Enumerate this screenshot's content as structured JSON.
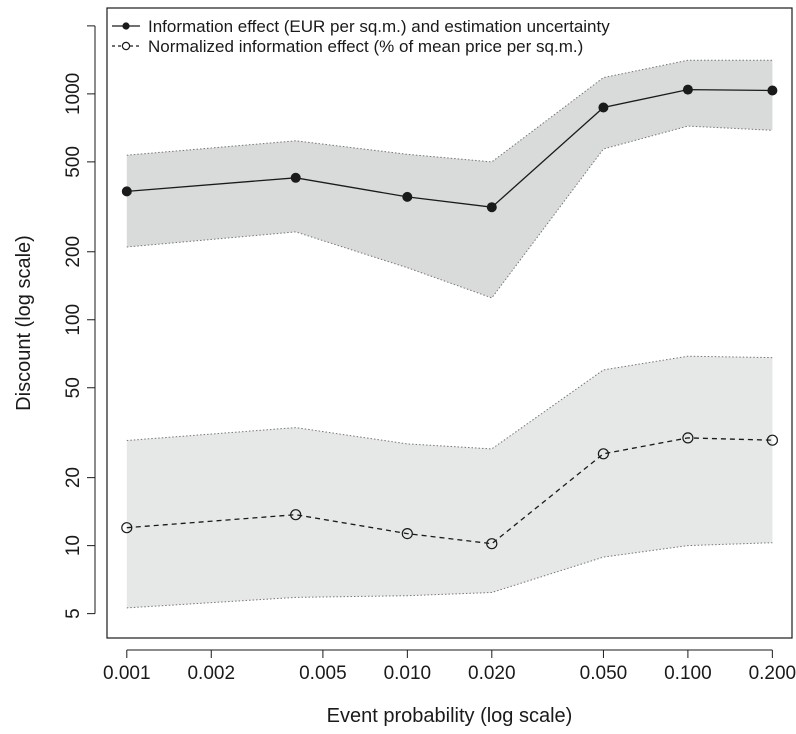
{
  "chart_data": {
    "type": "line",
    "title": "",
    "xlabel": "Event probability (log scale)",
    "ylabel": "Discount (log scale)",
    "x_scale": "log",
    "y_scale": "log",
    "xlim": [
      0.00085,
      0.235
    ],
    "ylim": [
      3.9,
      2400
    ],
    "x": [
      0.001,
      0.004,
      0.01,
      0.02,
      0.05,
      0.1,
      0.2
    ],
    "x_ticks": [
      {
        "value": 0.001,
        "label": "0.001"
      },
      {
        "value": 0.002,
        "label": "0.002"
      },
      {
        "value": 0.005,
        "label": "0.005"
      },
      {
        "value": 0.01,
        "label": "0.010"
      },
      {
        "value": 0.02,
        "label": "0.020"
      },
      {
        "value": 0.05,
        "label": "0.050"
      },
      {
        "value": 0.1,
        "label": "0.100"
      },
      {
        "value": 0.2,
        "label": "0.200"
      }
    ],
    "y_ticks": [
      {
        "value": 5,
        "label": "5"
      },
      {
        "value": 10,
        "label": "10"
      },
      {
        "value": 20,
        "label": "20"
      },
      {
        "value": 50,
        "label": "50"
      },
      {
        "value": 100,
        "label": "100"
      },
      {
        "value": 200,
        "label": "200"
      },
      {
        "value": 500,
        "label": "500"
      },
      {
        "value": 1000,
        "label": "1000"
      },
      {
        "value": 2000,
        "label": ""
      }
    ],
    "grid": false,
    "legend_position": "top-left",
    "series": [
      {
        "name": "Information effect (EUR per sq.m.) and estimation uncertainty",
        "line_style": "solid",
        "marker": "filled-circle",
        "color": "#1a1a1a",
        "band_color": "#d9dbdb",
        "values": [
          370,
          425,
          350,
          315,
          870,
          1045,
          1035
        ],
        "lower": [
          210,
          245,
          170,
          125,
          570,
          720,
          690
        ],
        "upper": [
          535,
          620,
          540,
          500,
          1180,
          1410,
          1410
        ]
      },
      {
        "name": "Normalized information effect (% of mean price per sq.m.)",
        "line_style": "dashed",
        "marker": "open-circle",
        "color": "#1a1a1a",
        "band_color": "#e6e7e7",
        "values": [
          12,
          13.7,
          11.3,
          10.2,
          25.5,
          30,
          29.3
        ],
        "lower": [
          5.3,
          5.9,
          6.0,
          6.2,
          8.9,
          10.0,
          10.3
        ],
        "upper": [
          29.2,
          33.3,
          28.2,
          26.8,
          60,
          69,
          68
        ]
      }
    ]
  }
}
